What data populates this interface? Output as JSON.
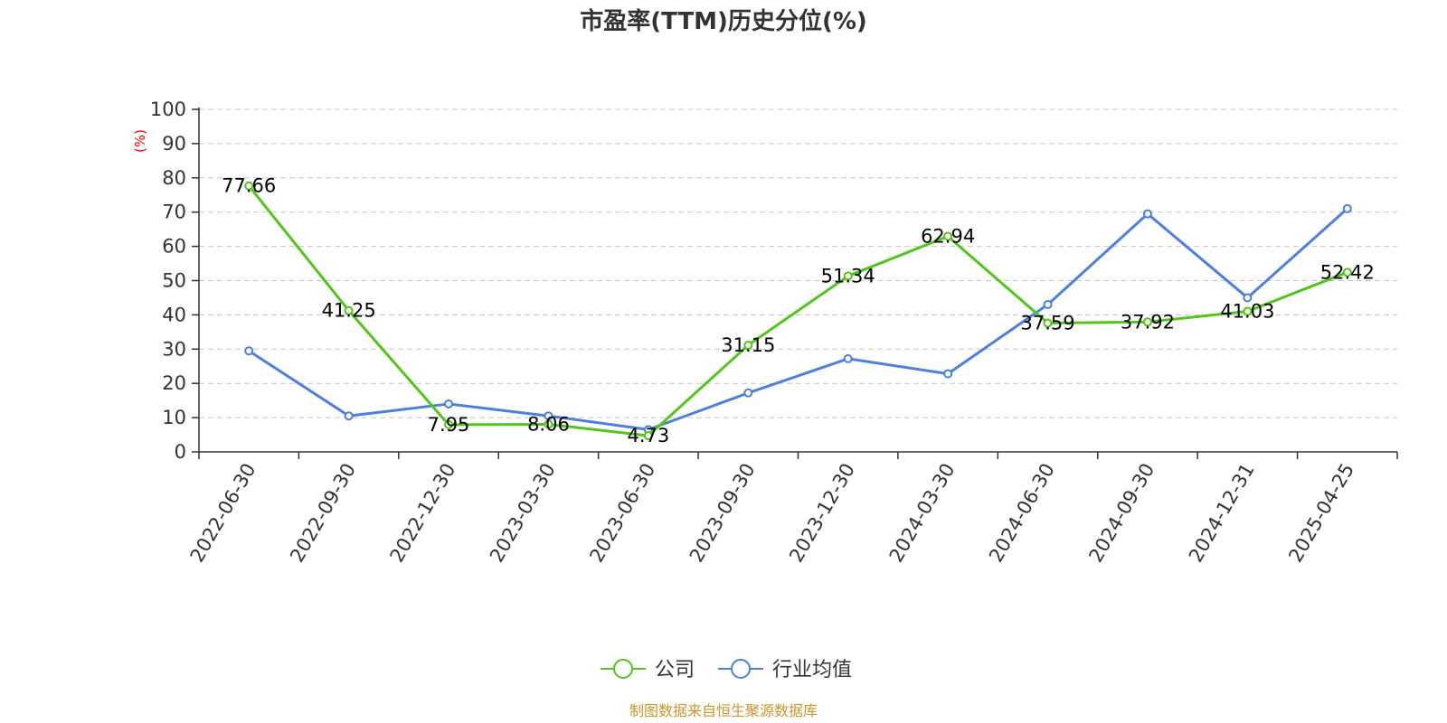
{
  "colors": {
    "company": "#52c41a",
    "industry": "#4d7fdc",
    "axis": "#333333",
    "grid": "#c8c8c8",
    "unit": "#ff0000",
    "source": "#c8962e"
  },
  "footer": {
    "source": "制图数据来自恒生聚源数据库"
  },
  "chart_data": {
    "type": "line",
    "title": "市盈率(TTM)历史分位(%)",
    "ylabel": "(%)",
    "xlabel": "",
    "ylim": [
      0,
      100
    ],
    "yticks": [
      0,
      10,
      20,
      30,
      40,
      50,
      60,
      70,
      80,
      90,
      100
    ],
    "grid": true,
    "legend_position": "bottom-center",
    "categories": [
      "2022-06-30",
      "2022-09-30",
      "2022-12-30",
      "2023-03-30",
      "2023-06-30",
      "2023-09-30",
      "2023-12-30",
      "2024-03-30",
      "2024-06-30",
      "2024-09-30",
      "2024-12-31",
      "2025-04-25"
    ],
    "series": [
      {
        "name": "公司",
        "color": "#52c41a",
        "values": [
          77.66,
          41.25,
          7.95,
          8.06,
          4.73,
          31.15,
          51.34,
          62.94,
          37.59,
          37.92,
          41.03,
          52.42
        ],
        "labels": [
          "77.66",
          "41.25",
          "7.95",
          "8.06",
          "4.73",
          "31.15",
          "51.34",
          "62.94",
          "37.59",
          "37.92",
          "41.03",
          "52.42"
        ]
      },
      {
        "name": "行业均值",
        "color": "#4d7fdc",
        "values": [
          29.5,
          10.5,
          14.0,
          10.5,
          6.5,
          17.2,
          27.2,
          22.8,
          43.0,
          69.5,
          45.0,
          71.0
        ]
      }
    ]
  }
}
